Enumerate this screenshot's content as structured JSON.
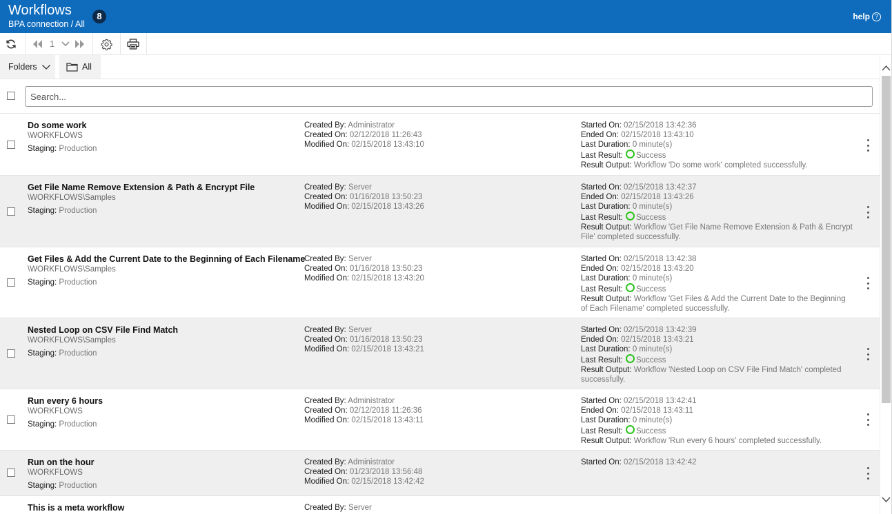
{
  "header": {
    "title": "Workflows",
    "subtitle": "BPA connection / All",
    "count": "8",
    "help_label": "help",
    "help_icon_text": "?",
    "colors": {
      "header_bg": "#0f6cbd",
      "badge_bg": "#0d2a4a",
      "success": "#2ec21e"
    }
  },
  "toolbar": {
    "page_number": "1",
    "icons": [
      "refresh-icon",
      "first-page-icon",
      "page-select-chevron-icon",
      "last-page-icon",
      "gear-icon",
      "print-icon"
    ]
  },
  "folders": {
    "label": "Folders",
    "all_label": "All"
  },
  "search": {
    "placeholder": "Search..."
  },
  "labels": {
    "staging": "Staging:",
    "created_by": "Created By:",
    "created_on": "Created On:",
    "modified_on": "Modified On:",
    "started_on": "Started On:",
    "ended_on": "Ended On:",
    "last_duration": "Last Duration:",
    "last_result": "Last Result:",
    "result_output": "Result Output:"
  },
  "workflows": [
    {
      "name": "Do some work",
      "path": "\\WORKFLOWS",
      "staging": "Production",
      "created_by": "Administrator",
      "created_on": "02/12/2018 11:26:43",
      "modified_on": "02/15/2018 13:43:10",
      "started_on": "02/15/2018 13:42:36",
      "ended_on": "02/15/2018 13:43:10",
      "last_duration": "0 minute(s)",
      "last_result": "Success",
      "result_output": "Workflow 'Do some work' completed successfully."
    },
    {
      "name": "Get File Name Remove Extension & Path & Encrypt File",
      "path": "\\WORKFLOWS\\Samples",
      "staging": "Production",
      "created_by": "Server",
      "created_on": "01/16/2018 13:50:23",
      "modified_on": "02/15/2018 13:43:26",
      "started_on": "02/15/2018 13:42:37",
      "ended_on": "02/15/2018 13:43:26",
      "last_duration": "0 minute(s)",
      "last_result": "Success",
      "result_output": "Workflow 'Get File Name Remove Extension & Path & Encrypt File' completed successfully."
    },
    {
      "name": "Get Files & Add the Current Date to the Beginning of Each Filename",
      "path": "\\WORKFLOWS\\Samples",
      "staging": "Production",
      "created_by": "Server",
      "created_on": "01/16/2018 13:50:23",
      "modified_on": "02/15/2018 13:43:20",
      "started_on": "02/15/2018 13:42:38",
      "ended_on": "02/15/2018 13:43:20",
      "last_duration": "0 minute(s)",
      "last_result": "Success",
      "result_output": "Workflow 'Get Files & Add the Current Date to the Beginning of Each Filename' completed successfully."
    },
    {
      "name": "Nested Loop on CSV File Find Match",
      "path": "\\WORKFLOWS\\Samples",
      "staging": "Production",
      "created_by": "Server",
      "created_on": "01/16/2018 13:50:23",
      "modified_on": "02/15/2018 13:43:21",
      "started_on": "02/15/2018 13:42:39",
      "ended_on": "02/15/2018 13:43:21",
      "last_duration": "0 minute(s)",
      "last_result": "Success",
      "result_output": "Workflow 'Nested Loop on CSV File Find Match' completed successfully."
    },
    {
      "name": "Run every 6 hours",
      "path": "\\WORKFLOWS",
      "staging": "Production",
      "created_by": "Administrator",
      "created_on": "02/12/2018 11:26:36",
      "modified_on": "02/15/2018 13:43:11",
      "started_on": "02/15/2018 13:42:41",
      "ended_on": "02/15/2018 13:43:11",
      "last_duration": "0 minute(s)",
      "last_result": "Success",
      "result_output": "Workflow 'Run every 6 hours' completed successfully."
    },
    {
      "name": "Run on the hour",
      "path": "\\WORKFLOWS",
      "staging": "Production",
      "created_by": "Administrator",
      "created_on": "01/23/2018 13:56:48",
      "modified_on": "02/15/2018 13:42:42",
      "started_on": "02/15/2018 13:42:42"
    },
    {
      "name": "This is a meta workflow",
      "created_by": "Server"
    }
  ]
}
